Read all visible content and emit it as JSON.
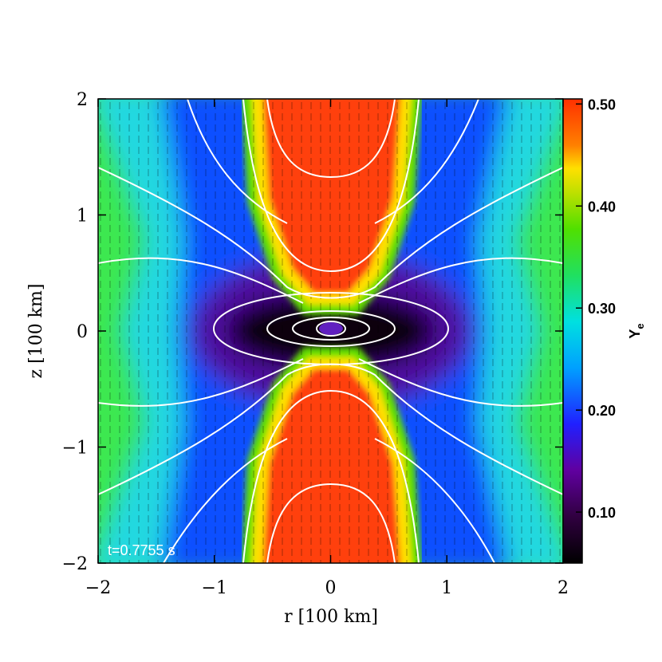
{
  "chart_data": {
    "type": "heatmap",
    "xlabel": "r [100 km]",
    "ylabel": "z [100 km]",
    "xlim": [
      -2,
      2
    ],
    "ylim": [
      -2,
      2
    ],
    "xticks": [
      {
        "value": -2,
        "label": "−2"
      },
      {
        "value": -1,
        "label": "−1"
      },
      0,
      1,
      2
    ],
    "yticks": [
      {
        "value": -2,
        "label": "−2"
      },
      {
        "value": -1,
        "label": "−1"
      },
      0,
      1,
      2
    ],
    "colorbar": {
      "label": "Y",
      "label_sub": "e",
      "lim": [
        0.05,
        0.505
      ],
      "ticks": [
        {
          "value": 0.1,
          "label": "0.10"
        },
        {
          "value": 0.2,
          "label": "0.20"
        },
        {
          "value": 0.3,
          "label": "0.30"
        },
        {
          "value": 0.4,
          "label": "0.40"
        },
        {
          "value": 0.5,
          "label": "0.50"
        }
      ]
    },
    "annotation": "t=0.7755 s"
  }
}
